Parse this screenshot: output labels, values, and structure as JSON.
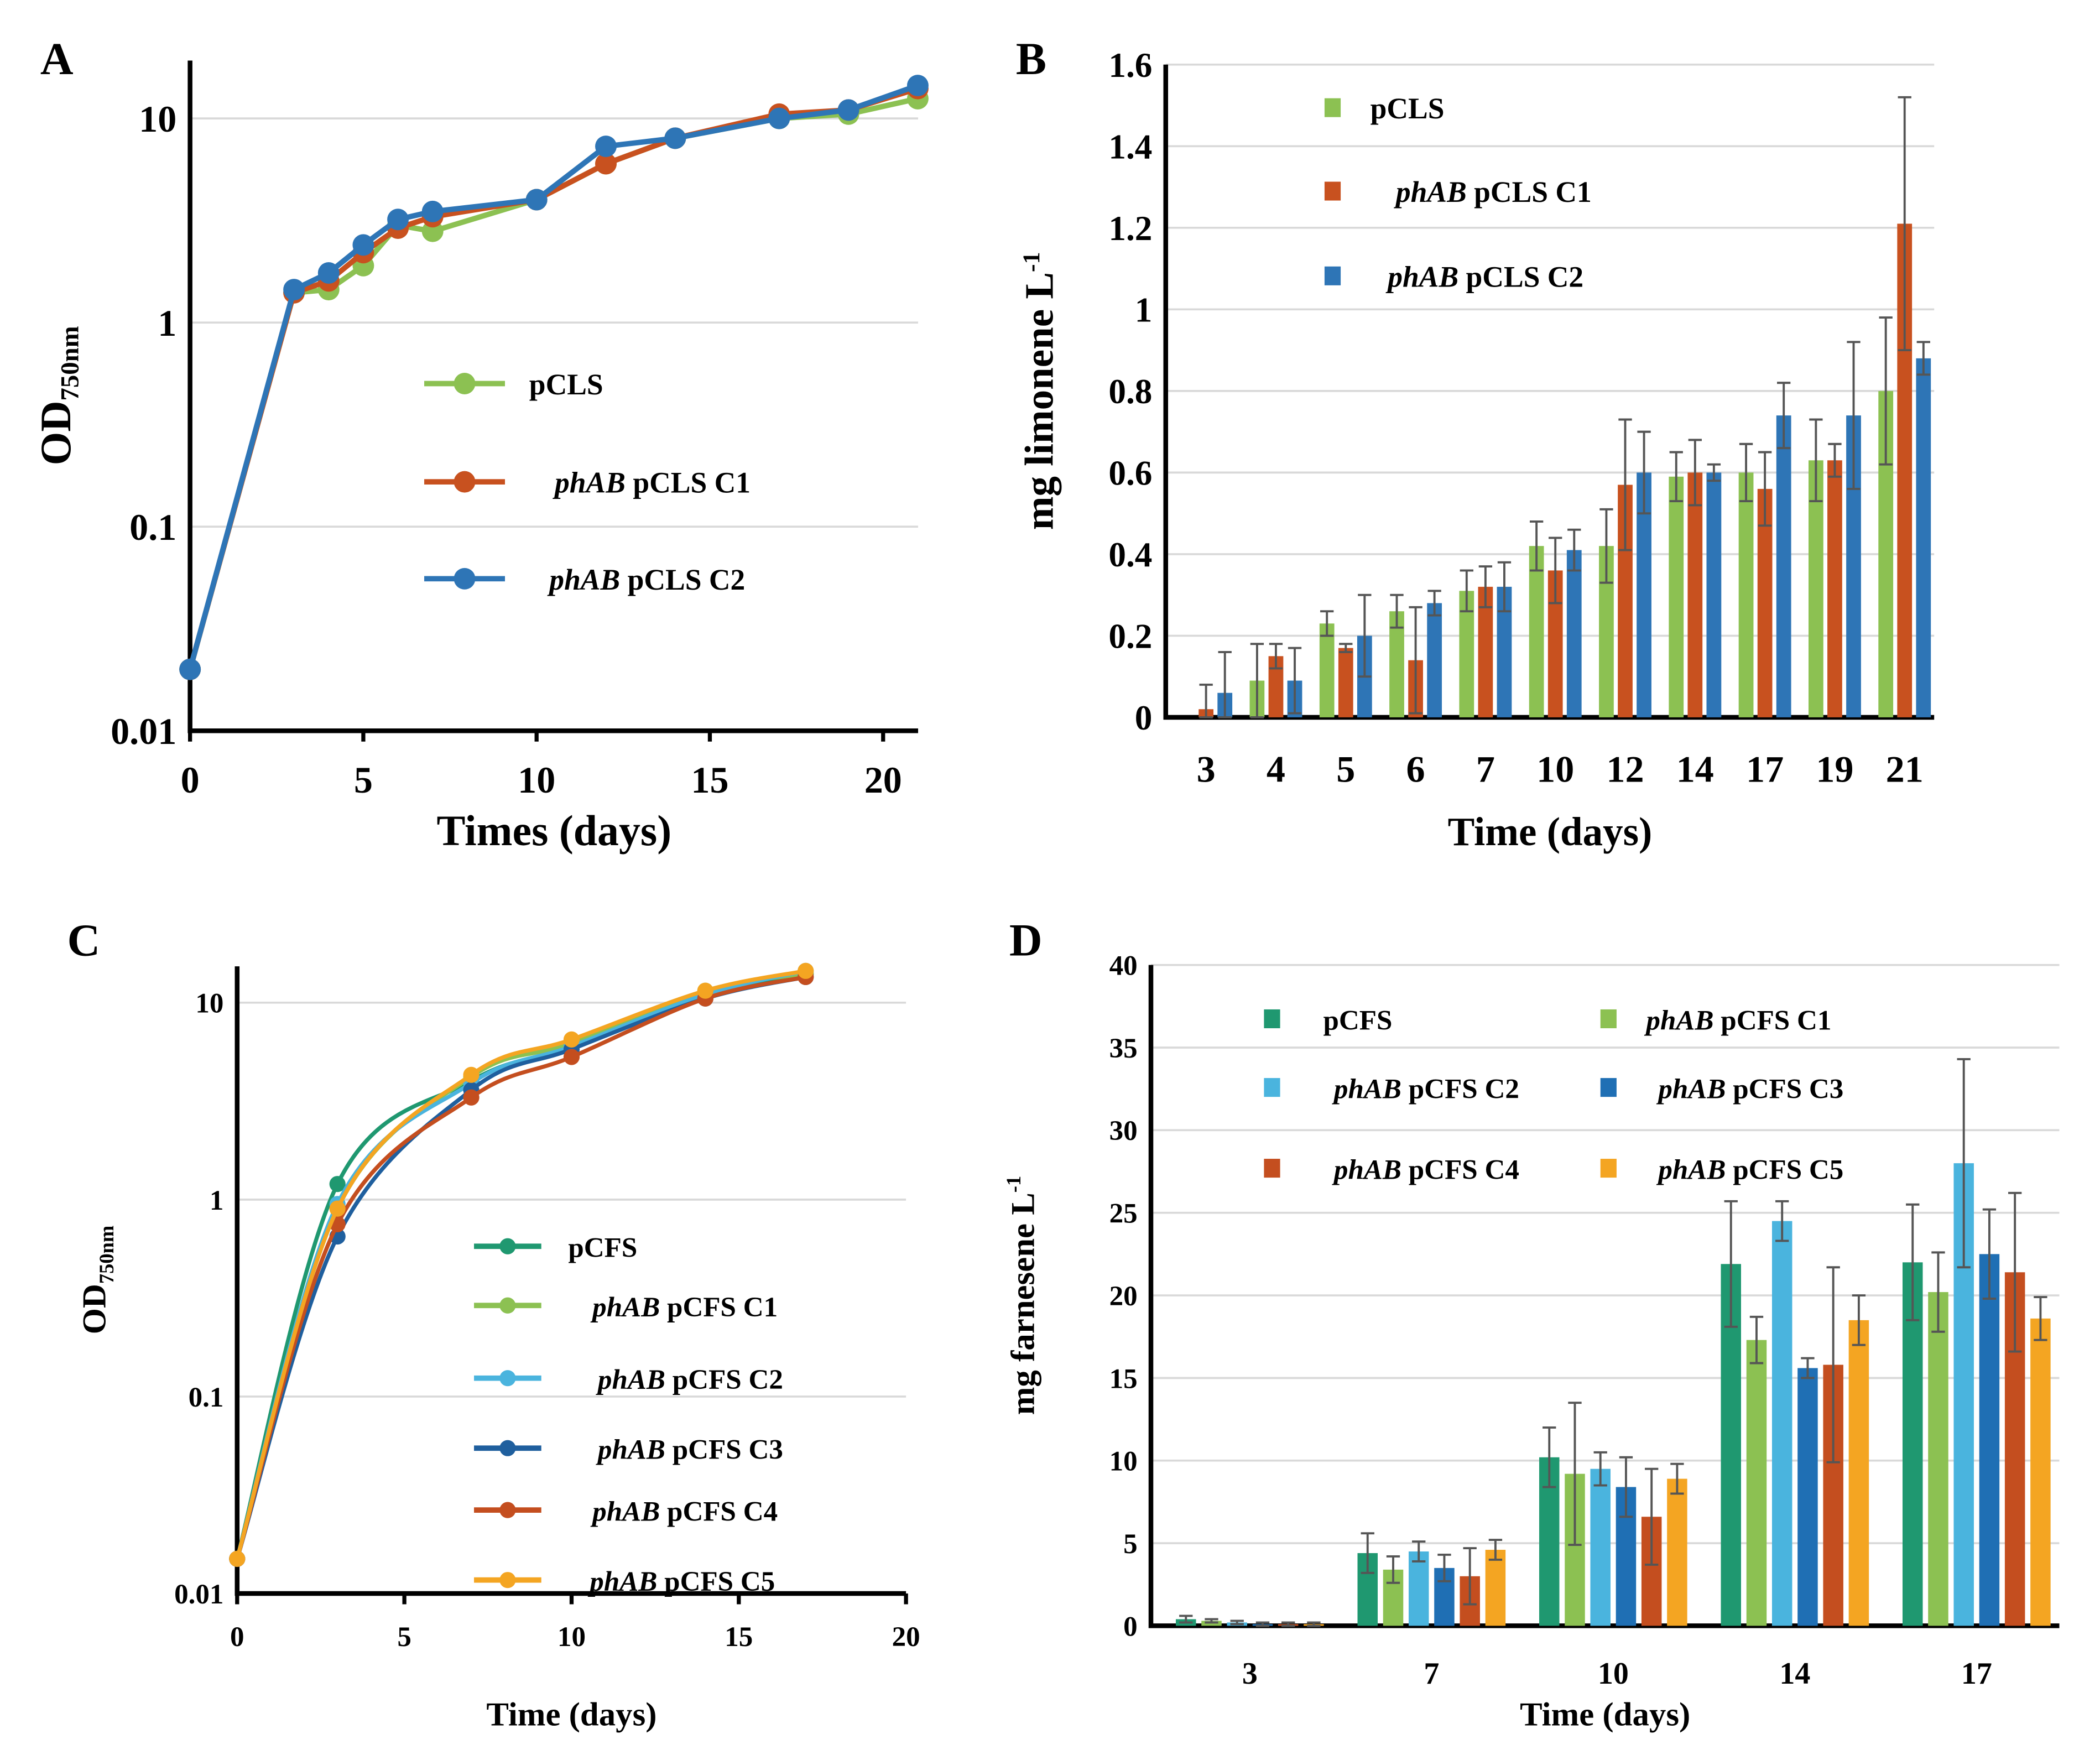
{
  "chart_data": [
    {
      "panel_label": "A",
      "type": "line",
      "yscale": "log",
      "xlabel": "Times (days)",
      "ylabel_main": "OD",
      "ylabel_sub": "750nm",
      "xlim": [
        0,
        21
      ],
      "ylim": [
        0.01,
        20
      ],
      "grid": true,
      "legend_placement": "center-right",
      "xticks": [
        "0",
        "5",
        "10",
        "15",
        "20"
      ],
      "yticks": [
        "0.01",
        "0.1",
        "1",
        "10"
      ],
      "x": [
        0,
        3,
        4,
        5,
        6,
        7,
        10,
        12,
        14,
        17,
        19,
        21
      ],
      "series": [
        {
          "name_italic": "",
          "name_rest": "pCLS",
          "color": "#8cc152",
          "values": [
            0.02,
            1.4,
            1.45,
            1.9,
            3.0,
            2.8,
            4.0,
            6.0,
            8.0,
            10.0,
            10.5,
            12.5
          ]
        },
        {
          "name_italic": "phAB",
          "name_rest": " pCLS C1",
          "color": "#c8511f",
          "values": [
            0.02,
            1.4,
            1.6,
            2.2,
            2.9,
            3.3,
            4.0,
            6.0,
            8.0,
            10.5,
            11.0,
            14.0
          ]
        },
        {
          "name_italic": "phAB",
          "name_rest": " pCLS C2",
          "color": "#2e75b6",
          "values": [
            0.02,
            1.45,
            1.75,
            2.4,
            3.2,
            3.5,
            4.0,
            7.3,
            8.0,
            10.0,
            11.0,
            14.5
          ]
        }
      ]
    },
    {
      "panel_label": "B",
      "type": "bar",
      "xlabel": "Time (days)",
      "ylabel_main": "mg limonene L",
      "ylabel_sup": "-1",
      "ylim": [
        0,
        1.6
      ],
      "grid": true,
      "legend_placement": "top-left",
      "categories": [
        "3",
        "4",
        "5",
        "6",
        "7",
        "10",
        "12",
        "14",
        "17",
        "19",
        "21"
      ],
      "yticks": [
        "0",
        "0.2",
        "0.4",
        "0.6",
        "0.8",
        "1",
        "1.2",
        "1.4",
        "1.6"
      ],
      "series": [
        {
          "name_italic": "",
          "name_rest": "pCLS",
          "color": "#8cc152",
          "values": [
            0,
            0.09,
            0.23,
            0.26,
            0.31,
            0.42,
            0.42,
            0.59,
            0.6,
            0.63,
            0.8
          ],
          "error": [
            0,
            0.09,
            0.03,
            0.04,
            0.05,
            0.06,
            0.09,
            0.06,
            0.07,
            0.1,
            0.18
          ]
        },
        {
          "name_italic": "phAB",
          "name_rest": " pCLS C1",
          "color": "#c8511f",
          "values": [
            0.02,
            0.15,
            0.17,
            0.14,
            0.32,
            0.36,
            0.57,
            0.6,
            0.56,
            0.63,
            1.21
          ],
          "error": [
            0.06,
            0.03,
            0.01,
            0.13,
            0.05,
            0.08,
            0.16,
            0.08,
            0.09,
            0.04,
            0.31
          ]
        },
        {
          "name_italic": "phAB",
          "name_rest": " pCLS C2",
          "color": "#2e75b6",
          "values": [
            0.06,
            0.09,
            0.2,
            0.28,
            0.32,
            0.41,
            0.6,
            0.6,
            0.74,
            0.74,
            0.88
          ],
          "error": [
            0.1,
            0.08,
            0.1,
            0.03,
            0.06,
            0.05,
            0.1,
            0.02,
            0.08,
            0.18,
            0.04
          ]
        }
      ]
    },
    {
      "panel_label": "C",
      "type": "line",
      "yscale": "log",
      "xlabel": "Time (days)",
      "ylabel_main": "OD",
      "ylabel_sub": "750nm",
      "xlim": [
        0,
        20
      ],
      "ylim": [
        0.01,
        15
      ],
      "grid": true,
      "legend_placement": "center-right",
      "xticks": [
        "0",
        "5",
        "10",
        "15",
        "20"
      ],
      "yticks": [
        "0.01",
        "0.1",
        "1",
        "10"
      ],
      "x": [
        0,
        3,
        7,
        10,
        14,
        17
      ],
      "series": [
        {
          "name_italic": "",
          "name_rest": "pCFS",
          "color": "#1f9870",
          "values": [
            0.015,
            1.2,
            4.0,
            6.0,
            11.0,
            14.0
          ]
        },
        {
          "name_italic": "phAB",
          "name_rest": " pCFS C1",
          "color": "#8cc152",
          "values": [
            0.015,
            0.9,
            4.2,
            6.2,
            11.5,
            14.0
          ]
        },
        {
          "name_italic": "phAB",
          "name_rest": " pCFS C2",
          "color": "#4ab4de",
          "values": [
            0.015,
            0.95,
            3.9,
            6.0,
            11.0,
            14.5
          ]
        },
        {
          "name_italic": "phAB",
          "name_rest": " pCFS C3",
          "color": "#1f5f9e",
          "values": [
            0.015,
            0.65,
            3.6,
            5.8,
            10.5,
            13.5
          ]
        },
        {
          "name_italic": "phAB",
          "name_rest": " pCFS C4",
          "color": "#c44e1f",
          "values": [
            0.015,
            0.75,
            3.3,
            5.3,
            10.5,
            13.5
          ]
        },
        {
          "name_italic": "phAB",
          "name_rest": " pCFS C5",
          "color": "#f4a522",
          "values": [
            0.015,
            0.9,
            4.3,
            6.5,
            11.5,
            14.5
          ]
        }
      ]
    },
    {
      "panel_label": "D",
      "type": "bar",
      "xlabel": "Time (days)",
      "ylabel_main": "mg farnesene L",
      "ylabel_sup": "-1",
      "ylim": [
        0,
        40
      ],
      "grid": true,
      "legend_placement": "top",
      "categories": [
        "3",
        "7",
        "10",
        "14",
        "17"
      ],
      "yticks": [
        "0",
        "5",
        "10",
        "15",
        "20",
        "25",
        "30",
        "35",
        "40"
      ],
      "series": [
        {
          "name_italic": "",
          "name_rest": "pCFS",
          "color": "#1f9870",
          "values": [
            0.4,
            4.4,
            10.2,
            21.9,
            22.0
          ],
          "error": [
            0.2,
            1.2,
            1.8,
            3.8,
            3.5
          ]
        },
        {
          "name_italic": "phAB",
          "name_rest": " pCFS C1",
          "color": "#8cc152",
          "values": [
            0.3,
            3.4,
            9.2,
            17.3,
            20.2
          ],
          "error": [
            0.1,
            0.8,
            4.3,
            1.4,
            2.4
          ]
        },
        {
          "name_italic": "phAB",
          "name_rest": " pCFS C2",
          "color": "#4ab4de",
          "values": [
            0.2,
            4.5,
            9.5,
            24.5,
            28.0
          ],
          "error": [
            0.1,
            0.6,
            1.0,
            1.2,
            6.3
          ]
        },
        {
          "name_italic": "phAB",
          "name_rest": " pCFS C3",
          "color": "#1f6fb4",
          "values": [
            0.1,
            3.5,
            8.4,
            15.6,
            22.5
          ],
          "error": [
            0.1,
            0.8,
            1.8,
            0.6,
            2.7
          ]
        },
        {
          "name_italic": "phAB",
          "name_rest": " pCFS C4",
          "color": "#c44e1f",
          "values": [
            0.1,
            3.0,
            6.6,
            15.8,
            21.4
          ],
          "error": [
            0.1,
            1.7,
            2.9,
            5.9,
            4.8
          ]
        },
        {
          "name_italic": "phAB",
          "name_rest": " pCFS C5",
          "color": "#f4a522",
          "values": [
            0.1,
            4.6,
            8.9,
            18.5,
            18.6
          ],
          "error": [
            0.1,
            0.6,
            0.9,
            1.5,
            1.3
          ]
        }
      ]
    }
  ]
}
